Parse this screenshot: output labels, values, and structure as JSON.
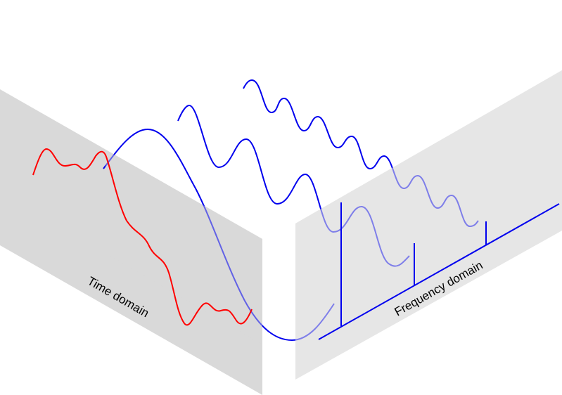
{
  "labels": {
    "time_domain": "Time domain",
    "frequency_domain": "Frequency domain"
  },
  "colors": {
    "panel_left": "#d9d9d9",
    "panel_right": "#e6e6e6",
    "signal_sum": "#ff0000",
    "components": "#0000ee",
    "spectrum": "#0000ee"
  }
}
